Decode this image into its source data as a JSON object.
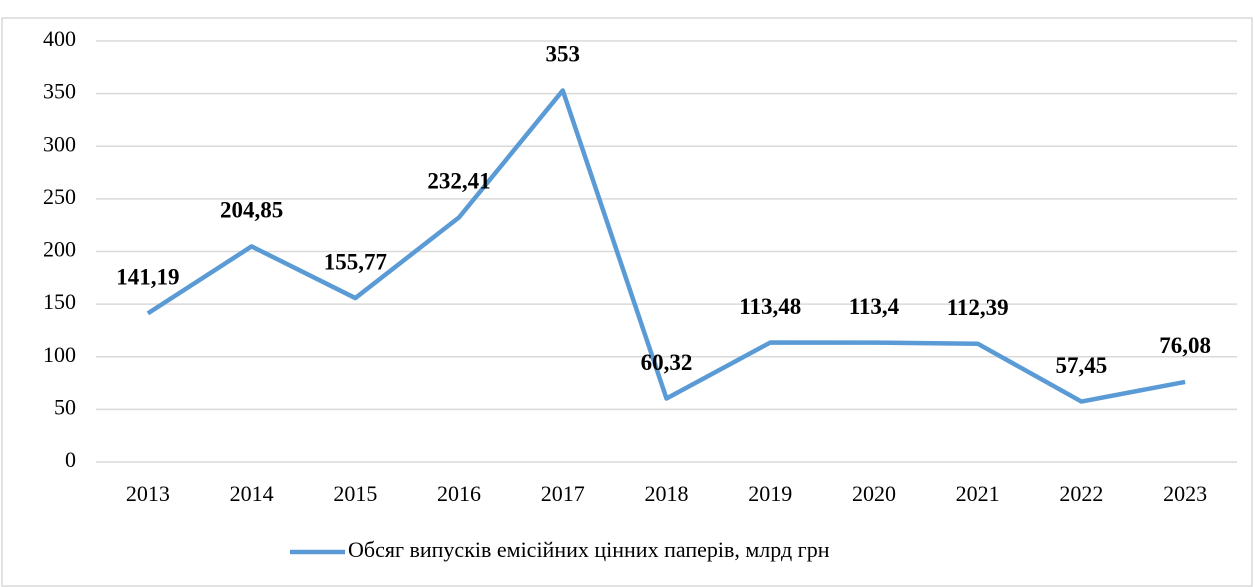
{
  "chart_data": {
    "type": "line",
    "categories": [
      "2013",
      "2014",
      "2015",
      "2016",
      "2017",
      "2018",
      "2019",
      "2020",
      "2021",
      "2022",
      "2023"
    ],
    "series": [
      {
        "name": "Обсяг випусків емісійних цінних паперів, млрд грн",
        "color": "#5b9bd5",
        "values": [
          141.19,
          204.85,
          155.77,
          232.41,
          353,
          60.32,
          113.48,
          113.4,
          112.39,
          57.45,
          76.08
        ],
        "value_labels": [
          "141,19",
          "204,85",
          "155,77",
          "232,41",
          "353",
          "60,32",
          "113,48",
          "113,4",
          "112,39",
          "57,45",
          "76,08"
        ]
      }
    ],
    "ylim": [
      0,
      400
    ],
    "yticks": [
      0,
      50,
      100,
      150,
      200,
      250,
      300,
      350,
      400
    ],
    "grid": true,
    "legend": "bottom"
  }
}
